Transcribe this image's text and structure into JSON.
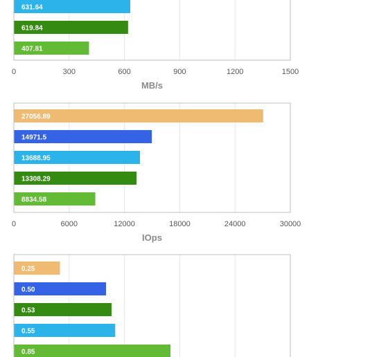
{
  "colors": {
    "orange": "#efbb73",
    "blue": "#3463e6",
    "sky": "#2bb3ea",
    "darkgreen": "#358a12",
    "lightgreen": "#62ba35"
  },
  "chart_data": [
    {
      "type": "bar",
      "orientation": "horizontal",
      "xlabel": "MB/s",
      "xlim": [
        0,
        1500
      ],
      "ticks": [
        "0",
        "300",
        "600",
        "900",
        "1200",
        "1500"
      ],
      "grid": true,
      "bars": [
        {
          "label": "631.64",
          "value": 631.64,
          "color": "#2bb3ea"
        },
        {
          "label": "619.84",
          "value": 619.84,
          "color": "#358a12"
        },
        {
          "label": "407.81",
          "value": 407.81,
          "color": "#62ba35"
        }
      ]
    },
    {
      "type": "bar",
      "orientation": "horizontal",
      "xlabel": "IOps",
      "xlim": [
        0,
        30000
      ],
      "ticks": [
        "0",
        "6000",
        "12000",
        "18000",
        "24000",
        "30000"
      ],
      "grid": true,
      "bars": [
        {
          "label": "27056.89",
          "value": 27056.89,
          "color": "#efbb73"
        },
        {
          "label": "14971.5",
          "value": 14971.5,
          "color": "#3463e6"
        },
        {
          "label": "13688.95",
          "value": 13688.95,
          "color": "#2bb3ea"
        },
        {
          "label": "13308.29",
          "value": 13308.29,
          "color": "#358a12"
        },
        {
          "label": "8834.58",
          "value": 8834.58,
          "color": "#62ba35"
        }
      ]
    },
    {
      "type": "bar",
      "orientation": "horizontal",
      "xlabel": "",
      "xlim": [
        0,
        1.5
      ],
      "grid": true,
      "bars": [
        {
          "label": "0.25",
          "value": 0.25,
          "color": "#efbb73"
        },
        {
          "label": "0.50",
          "value": 0.5,
          "color": "#3463e6"
        },
        {
          "label": "0.53",
          "value": 0.53,
          "color": "#358a12"
        },
        {
          "label": "0.55",
          "value": 0.55,
          "color": "#2bb3ea"
        },
        {
          "label": "0.85",
          "value": 0.85,
          "color": "#62ba35"
        }
      ]
    }
  ]
}
